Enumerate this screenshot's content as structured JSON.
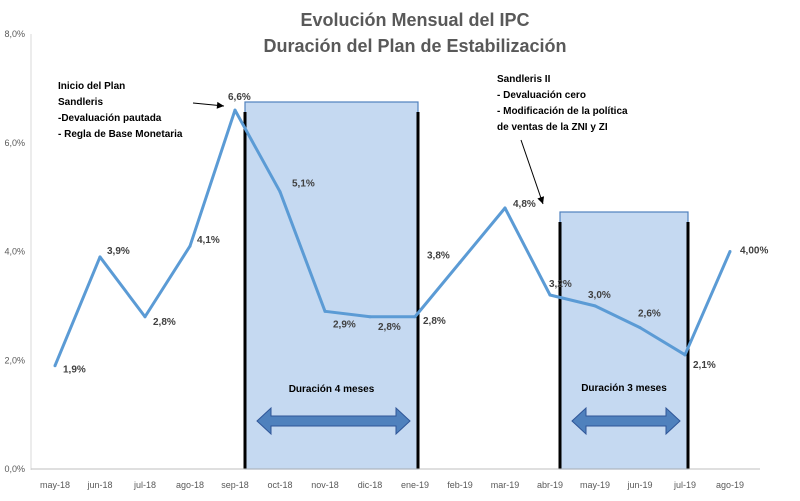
{
  "title": [
    "Evolución Mensual del IPC",
    "Duración del Plan de Estabilización"
  ],
  "chart_data": {
    "type": "line",
    "categories": [
      "may-18",
      "jun-18",
      "jul-18",
      "ago-18",
      "sep-18",
      "oct-18",
      "nov-18",
      "dic-18",
      "ene-19",
      "feb-19",
      "mar-19",
      "abr-19",
      "may-19",
      "jun-19",
      "jul-19",
      "ago-19"
    ],
    "series": [
      {
        "values": [
          1.9,
          3.9,
          2.8,
          4.1,
          6.6,
          5.1,
          2.9,
          2.8,
          2.8,
          3.8,
          4.8,
          3.2,
          3.0,
          2.6,
          2.1,
          4.0
        ],
        "labels": [
          "1,9%",
          "3,9%",
          "2,8%",
          "4,1%",
          "6,6%",
          "5,1%",
          "2,9%",
          "2,8%",
          "2,8%",
          "3,8%",
          "4,8%",
          "3,2%",
          "3,0%",
          "2,6%",
          "2,1%",
          "4,00%"
        ],
        "color": "#5b9bd5"
      }
    ],
    "ylim": [
      0,
      8
    ],
    "yticks": [
      "0,0%",
      "2,0%",
      "4,0%",
      "6,0%",
      "8,0%"
    ],
    "grid": false,
    "legend": "none",
    "shaded_periods": [
      {
        "from": "sep-18",
        "to": "ene-19",
        "label": "Duración 4 meses"
      },
      {
        "from": "abr-19",
        "to": "jul-19",
        "label": "Duración 3 meses"
      }
    ],
    "annotations": [
      {
        "lines": [
          "Inicio del Plan",
          "Sandleris",
          "-Devaluación pautada",
          "- Regla de Base Monetaria"
        ],
        "target": "sep-18"
      },
      {
        "lines": [
          "Sandleris II",
          "- Devaluación cero",
          "- Modificación de la política",
          "de ventas de la ZNI y ZI"
        ],
        "target": "abr-19"
      }
    ],
    "colors": {
      "line": "#5b9bd5",
      "shade": "#c5d9f1",
      "shade_border": "#4f81bd",
      "arrow": "#4f81bd"
    }
  }
}
